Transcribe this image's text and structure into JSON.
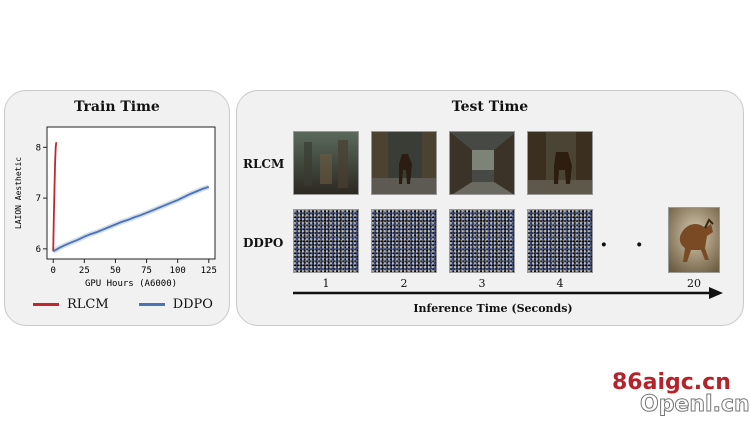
{
  "train_panel": {
    "title": "Train Time"
  },
  "test_panel": {
    "title": "Test Time",
    "rows": [
      "RLCM",
      "DDPO"
    ],
    "steps": [
      "1",
      "2",
      "3",
      "4",
      "20"
    ],
    "ellipsis": "· · ·",
    "axis_label": "Inference Time (Seconds)"
  },
  "chart_data": {
    "type": "line",
    "xlabel": "GPU Hours (A6000)",
    "ylabel": "LAION Aesthetic",
    "xlim": [
      -5,
      130
    ],
    "ylim": [
      5.8,
      8.4
    ],
    "xticks": [
      0,
      25,
      50,
      75,
      100,
      125
    ],
    "yticks": [
      6,
      7,
      8
    ],
    "legend_position": "bottom",
    "series": [
      {
        "name": "RLCM",
        "color": "#c0282d",
        "x": [
          0,
          0.5,
          1,
          1.5,
          2,
          2.5
        ],
        "y": [
          5.95,
          6.6,
          7.2,
          7.7,
          8.0,
          8.1
        ]
      },
      {
        "name": "DDPO",
        "color": "#4a74b4",
        "x": [
          0,
          5,
          10,
          15,
          20,
          25,
          30,
          35,
          40,
          45,
          50,
          55,
          60,
          65,
          70,
          75,
          80,
          85,
          90,
          95,
          100,
          105,
          110,
          115,
          120,
          125
        ],
        "y": [
          5.95,
          6.02,
          6.08,
          6.13,
          6.18,
          6.24,
          6.29,
          6.33,
          6.38,
          6.43,
          6.48,
          6.53,
          6.57,
          6.62,
          6.66,
          6.71,
          6.76,
          6.81,
          6.86,
          6.91,
          6.96,
          7.02,
          7.08,
          7.13,
          7.18,
          7.22
        ]
      }
    ]
  },
  "colors": {
    "panel_bg": "#f1f1f1",
    "rlcm": "#c0282d",
    "ddpo": "#4a74b4"
  },
  "watermark": {
    "main": "86aigc.cn",
    "sub": "Openl.cn"
  }
}
